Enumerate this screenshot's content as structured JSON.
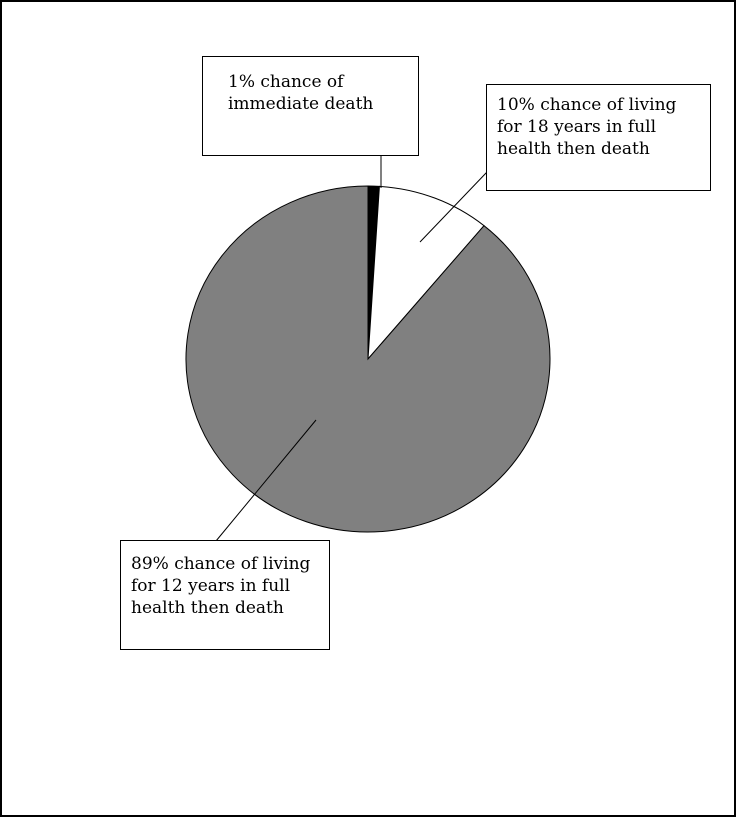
{
  "chart_data": {
    "type": "pie",
    "title": "",
    "slices": [
      {
        "label": "1% chance of immediate death",
        "value": 1,
        "color": "#000000"
      },
      {
        "label": "10% chance of living for 18 years in full health then death",
        "value": 10,
        "color": "#ffffff"
      },
      {
        "label": "89% chance of living for 12 years in full health then death",
        "value": 89,
        "color": "#808080"
      }
    ],
    "annotations": {
      "immediate_death": "1% chance of\nimmediate death",
      "eighteen_years": "10% chance of living\nfor 18 years in full\nhealth then death",
      "twelve_years": "89% chance of living\nfor 12 years in full\nhealth then death"
    },
    "legend": "none",
    "grid": false
  }
}
